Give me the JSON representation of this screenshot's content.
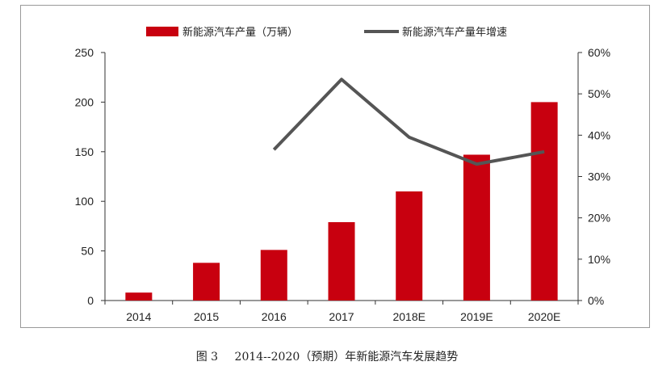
{
  "chart_data": {
    "type": "bar",
    "categories": [
      "2014",
      "2015",
      "2016",
      "2017",
      "2018E",
      "2019E",
      "2020E"
    ],
    "series": [
      {
        "name": "新能源汽车产量（万辆）",
        "type": "bar",
        "axis": "left",
        "color": "#c8000f",
        "values": [
          8,
          38,
          51,
          79,
          110,
          147,
          200
        ]
      },
      {
        "name": "新能源汽车产量年增速",
        "type": "line",
        "axis": "right",
        "color": "#555555",
        "values": [
          null,
          null,
          36.5,
          53.5,
          39.5,
          33,
          36
        ]
      }
    ],
    "y_left": {
      "ylim": [
        0,
        250
      ],
      "ticks": [
        "0",
        "50",
        "100",
        "150",
        "200",
        "250"
      ]
    },
    "y_right": {
      "ylim": [
        0,
        60
      ],
      "ticks": [
        "0%",
        "10%",
        "20%",
        "30%",
        "40%",
        "50%",
        "60%"
      ]
    },
    "legend_position": "top",
    "grid": false
  },
  "caption": {
    "figure_no": "图 3",
    "text": "2014--2020（预期）年新能源汽车发展趋势"
  }
}
